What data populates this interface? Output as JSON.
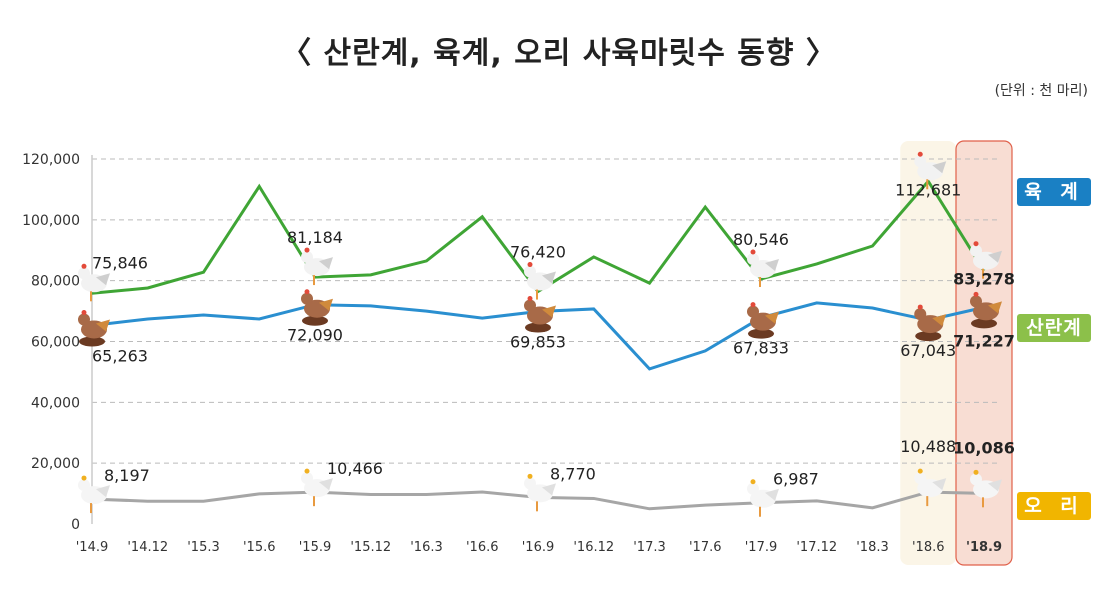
{
  "chart_data": {
    "type": "line",
    "title": "〈 산란계, 육계, 오리 사육마릿수 동향 〉",
    "unit_note": "(단위 : 천 마리)",
    "x": [
      "'14.9",
      "'14.12",
      "'15.3",
      "'15.6",
      "'15.9",
      "'15.12",
      "'16.3",
      "'16.6",
      "'16.9",
      "'16.12",
      "'17.3",
      "'17.6",
      "'17.9",
      "'17.12",
      "'18.3",
      "'18.6",
      "'18.9"
    ],
    "ylim": [
      0,
      120000
    ],
    "yticks": [
      "0",
      "20,000",
      "40,000",
      "60,000",
      "80,000",
      "100,000",
      "120,000"
    ],
    "grid": true,
    "highlighted_categories": [
      "'18.6",
      "'18.9"
    ],
    "series": [
      {
        "name": "육계",
        "color": "#3fa535",
        "values": [
          75846,
          77600,
          82800,
          111000,
          81184,
          81900,
          86500,
          101000,
          76420,
          87800,
          79200,
          104200,
          80546,
          85500,
          91400,
          112681,
          83278
        ],
        "labels": {
          "0": "75,846",
          "4": "81,184",
          "8": "76,420",
          "12": "80,546",
          "15": "112,681",
          "16": "83,278"
        }
      },
      {
        "name": "산란계",
        "color": "#2a8fd0",
        "values": [
          65263,
          67400,
          68700,
          67400,
          72090,
          71700,
          70000,
          67700,
          69853,
          70700,
          51000,
          56900,
          67833,
          72700,
          71000,
          67043,
          71227
        ],
        "labels": {
          "0": "65,263",
          "4": "72,090",
          "8": "69,853",
          "12": "67,833",
          "15": "67,043",
          "16": "71,227"
        }
      },
      {
        "name": "오리",
        "color": "#a6a6a6",
        "values": [
          8197,
          7500,
          7500,
          9900,
          10466,
          9700,
          9700,
          10500,
          8770,
          8400,
          5000,
          6200,
          6987,
          7600,
          5300,
          10488,
          10086
        ],
        "labels": {
          "0": "8,197",
          "4": "10,466",
          "8": "8,770",
          "12": "6,987",
          "15": "10,488",
          "16": "10,086"
        }
      }
    ],
    "legend": [
      {
        "label": "육 계",
        "color": "#1a80c4"
      },
      {
        "label": "산란계",
        "color": "#8cc04a"
      },
      {
        "label": "오 리",
        "color": "#f1b500"
      }
    ],
    "legend_placement": "right"
  }
}
